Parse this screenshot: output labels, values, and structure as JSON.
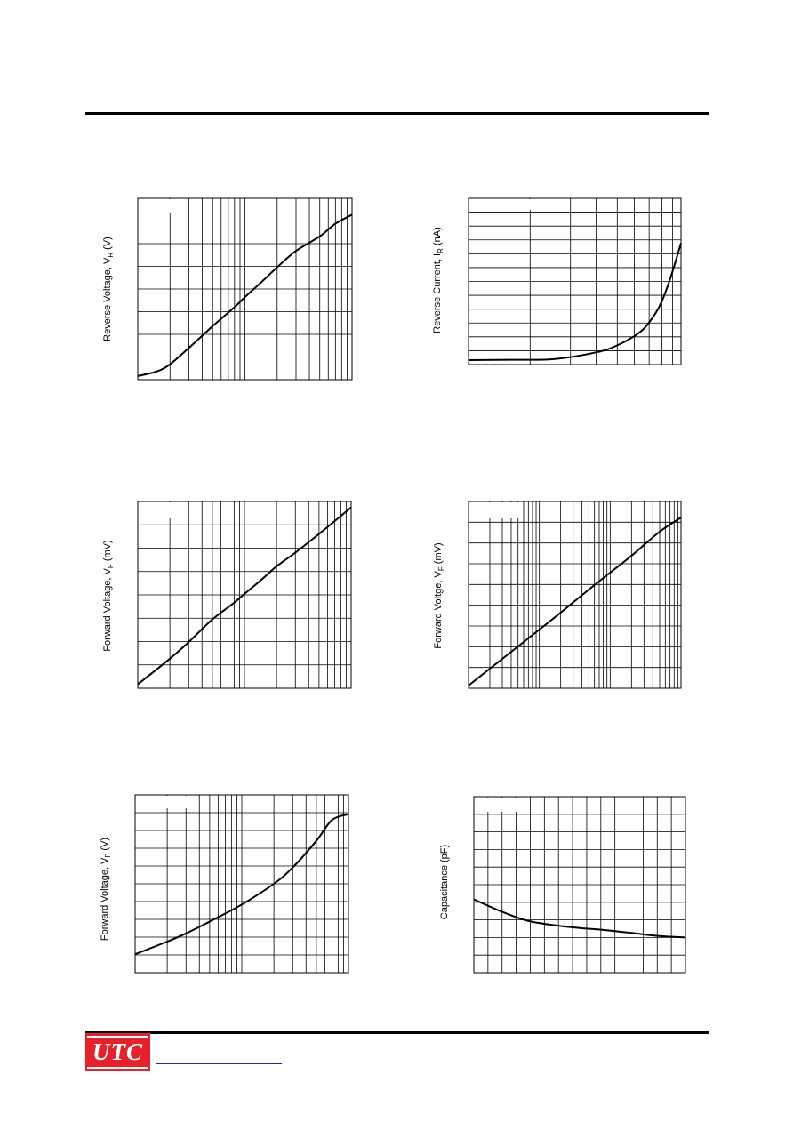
{
  "header_rule": true,
  "logo": {
    "text": "UTC",
    "color": "#e8202a"
  },
  "footer_link": {
    "color": "#1e28c8"
  },
  "chart_data": [
    {
      "type": "line",
      "xscale": "log",
      "grid": true,
      "ylabel_main": "Reverse Voltage, V",
      "ylabel_sub": "R",
      "ylabel_unit": "(V)",
      "x": [
        1,
        1.5,
        2,
        3,
        5,
        8,
        10,
        15,
        20,
        30,
        50,
        70,
        100
      ],
      "y": [
        0.2,
        0.45,
        0.85,
        1.75,
        2.95,
        4.0,
        4.55,
        5.5,
        6.2,
        7.1,
        7.9,
        8.6,
        9.1
      ],
      "ylim": [
        0,
        10
      ]
    },
    {
      "type": "line",
      "grid": true,
      "ylabel_main": "Reverse Current, I",
      "ylabel_sub": "R",
      "ylabel_unit": "(nA)",
      "x": [
        0,
        20,
        40,
        60,
        70,
        80,
        85,
        90,
        95,
        100
      ],
      "y": [
        0.7,
        0.75,
        0.85,
        1.9,
        3.0,
        4.9,
        6.6,
        9.2,
        13.5,
        19.0
      ],
      "ylim": [
        0,
        26
      ]
    },
    {
      "type": "line",
      "xscale": "log",
      "grid": true,
      "ylabel_main": "Forward Voltage, V",
      "ylabel_sub": "F",
      "ylabel_unit": "(mV)",
      "x": [
        1,
        2,
        3,
        5,
        8,
        10,
        15,
        20,
        30,
        50,
        70,
        100
      ],
      "y": [
        0.2,
        1.5,
        2.35,
        3.5,
        4.35,
        4.8,
        5.6,
        6.2,
        6.9,
        7.85,
        8.5,
        9.2
      ],
      "ylim": [
        0,
        9.5
      ]
    },
    {
      "type": "line",
      "xscale": "log",
      "grid": true,
      "ylabel_main": "Forward Voltge, V",
      "ylabel_sub": "F",
      "ylabel_unit": "(mV)",
      "x": [
        1,
        2,
        3,
        5,
        10,
        20,
        50,
        100,
        200,
        500,
        1000
      ],
      "y": [
        0.15,
        1.1,
        1.65,
        2.35,
        3.3,
        4.25,
        5.55,
        6.5,
        7.45,
        8.8,
        9.6
      ],
      "ylim": [
        0,
        10.5
      ]
    },
    {
      "type": "line",
      "xscale": "log",
      "grid": true,
      "ylabel_main": "Forward Voltage, V",
      "ylabel_sub": "F",
      "ylabel_unit": "(V)",
      "x": [
        1,
        2,
        3,
        5,
        10,
        20,
        30,
        50,
        70,
        100
      ],
      "y": [
        1.25,
        2.1,
        2.65,
        3.45,
        4.6,
        6.0,
        7.1,
        8.9,
        10.3,
        10.7
      ],
      "ylim": [
        0,
        12
      ]
    },
    {
      "type": "line",
      "grid": true,
      "ylabel_main": "Capacitance (pF)",
      "ylabel_sub": "",
      "ylabel_unit": "",
      "x": [
        0,
        2,
        4,
        6,
        8,
        10,
        12,
        14,
        16
      ],
      "y": [
        5.0,
        4.2,
        3.55,
        3.25,
        3.05,
        2.9,
        2.7,
        2.5,
        2.4
      ],
      "ylim": [
        0,
        12
      ]
    }
  ]
}
